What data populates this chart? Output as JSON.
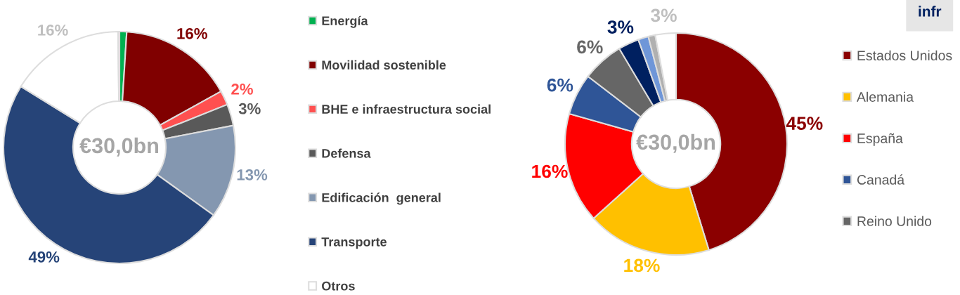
{
  "chart_data": [
    {
      "type": "donut",
      "categories": [
        "Energía",
        "Movilidad sostenible",
        "BHE e infraestructura social",
        "Defensa",
        "Edificación  general",
        "Transporte",
        "Otros",
        null
      ],
      "values": [
        1,
        16,
        2,
        3,
        13,
        49,
        16,
        0.2
      ],
      "colors": [
        "#00b050",
        "#800000",
        "#ff5050",
        "#595959",
        "#8497b0",
        "#264478",
        "#ffffff",
        "#f8cbad"
      ],
      "value_labels": [
        null,
        "16%",
        "2%",
        "3%",
        "13%",
        "49%",
        "16%",
        null
      ],
      "annotations": [
        "€30,0bn"
      ],
      "legend": "right"
    },
    {
      "type": "donut",
      "categories": [
        "Estados Unidos",
        "Alemania",
        "España",
        "Canadá",
        "Reino Unido",
        null,
        null,
        null,
        null
      ],
      "values": [
        45,
        18,
        16,
        6,
        6,
        3,
        1.5,
        1,
        3
      ],
      "colors": [
        "#8b0000",
        "#ffc000",
        "#ff0000",
        "#2f5597",
        "#666666",
        "#002060",
        "#6f96d8",
        "#b0b0b0",
        "#ffffff"
      ],
      "value_labels": [
        "45%",
        "18%",
        "16%",
        "6%",
        "6%",
        "3%",
        null,
        null,
        "3%"
      ],
      "annotations": [
        "€30,0bn",
        "infr"
      ],
      "legend": "right"
    }
  ]
}
